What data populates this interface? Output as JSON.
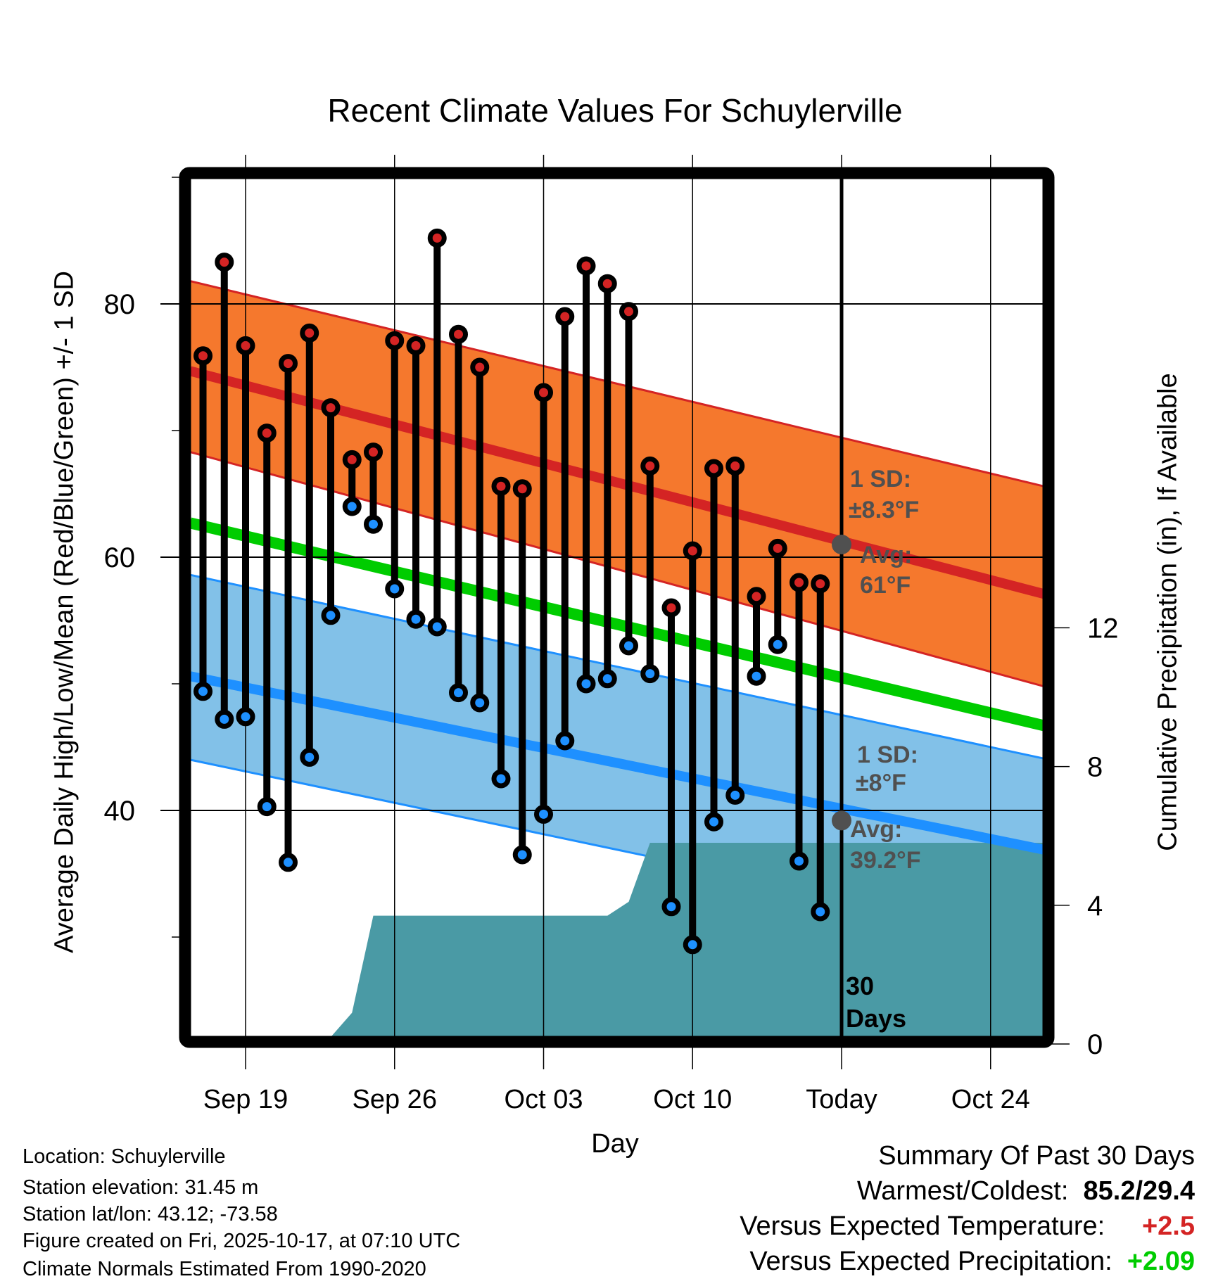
{
  "title": "Recent Climate Values For Schuylerville",
  "chart_data": {
    "type": "line",
    "title": "Recent Climate Values For Schuylerville",
    "xlabel": "Day",
    "ylabel": "Average Daily High/Low/Mean (Red/Blue/Green) +/- 1 SD",
    "y2label": "Cumulative Precipitation (in), If Available",
    "ylim": [
      21,
      90
    ],
    "y2lim": [
      0,
      24.8
    ],
    "yticks": [
      80,
      60,
      40
    ],
    "yticks_minor": [
      90,
      70,
      50,
      30
    ],
    "y2ticks": [
      12,
      8,
      4,
      0
    ],
    "xticks": [
      {
        "day": 2,
        "label": "Sep 19"
      },
      {
        "day": 9,
        "label": "Sep 26"
      },
      {
        "day": 16,
        "label": "Oct 03"
      },
      {
        "day": 23,
        "label": "Oct 10"
      },
      {
        "day": 30,
        "label": "Today"
      },
      {
        "day": 37,
        "label": "Oct 24"
      }
    ],
    "xlim": [
      -0.6,
      39.5
    ],
    "grid": true,
    "days": [
      "Sep 17",
      "Sep 18",
      "Sep 19",
      "Sep 20",
      "Sep 21",
      "Sep 22",
      "Sep 23",
      "Sep 24",
      "Sep 25",
      "Sep 26",
      "Sep 27",
      "Sep 28",
      "Sep 29",
      "Sep 30",
      "Oct 01",
      "Oct 02",
      "Oct 03",
      "Oct 04",
      "Oct 05",
      "Oct 06",
      "Oct 07",
      "Oct 08",
      "Oct 09",
      "Oct 10",
      "Oct 11",
      "Oct 12",
      "Oct 13",
      "Oct 14",
      "Oct 15",
      "Oct 16"
    ],
    "series": [
      {
        "name": "Daily High",
        "color": "#d42424",
        "values": [
          75.9,
          83.3,
          76.7,
          69.8,
          75.3,
          77.7,
          71.8,
          67.7,
          68.3,
          77.1,
          76.7,
          85.2,
          77.6,
          75.0,
          65.6,
          65.4,
          73.0,
          79.0,
          83.0,
          81.6,
          79.4,
          67.2,
          56.0,
          60.5,
          67.0,
          67.2,
          56.9,
          60.7,
          58.0,
          57.9
        ]
      },
      {
        "name": "Daily Low",
        "color": "#1e90ff",
        "values": [
          49.4,
          47.2,
          47.4,
          40.3,
          35.9,
          44.2,
          55.4,
          64.0,
          62.6,
          57.5,
          55.1,
          54.5,
          49.3,
          48.5,
          42.5,
          36.5,
          39.7,
          45.5,
          50.0,
          50.4,
          53.0,
          50.8,
          32.4,
          29.4,
          39.1,
          41.2,
          50.6,
          53.1,
          36.0,
          32.0
        ]
      }
    ],
    "normals": {
      "x_range": [
        -0.6,
        39.5
      ],
      "high_avg": [
        74.7,
        57.1
      ],
      "high_upper_sd": [
        81.8,
        65.6
      ],
      "high_lower_sd": [
        68.3,
        49.8
      ],
      "mean": [
        62.7,
        46.7
      ],
      "low_avg": [
        50.6,
        36.9
      ],
      "low_upper_sd": [
        58.6,
        44.1
      ],
      "low_lower_sd": [
        44.0,
        29.8
      ]
    },
    "precipitation": {
      "name": "Cumulative Precipitation",
      "color": "#4a9aa5",
      "points": [
        [
          5.8,
          0.0
        ],
        [
          6.0,
          0.2
        ],
        [
          7.0,
          0.9
        ],
        [
          8.0,
          3.7
        ],
        [
          19.0,
          3.7
        ],
        [
          20.0,
          4.1
        ],
        [
          21.0,
          5.8
        ],
        [
          39.5,
          5.8
        ]
      ]
    },
    "today_day": 30,
    "annotations": {
      "high_sd": "1 SD:",
      "high_sd_value": "±8.3°F",
      "high_avg": "Avg:",
      "high_avg_value": "61°F",
      "high_avg_today": 61,
      "low_sd": "1 SD:",
      "low_sd_value": "±8°F",
      "low_avg": "Avg:",
      "low_avg_value": "39.2°F",
      "low_avg_today": 39.2,
      "window": "30",
      "window_unit": "Days"
    },
    "colors": {
      "high_band": "#f5782d",
      "high_line": "#d42424",
      "mean_line": "#00cc00",
      "low_band": "#82c1e8",
      "low_line": "#1e90ff",
      "precip": "#4a9aa5",
      "annotation": "#505050"
    }
  },
  "info": {
    "location": "Location: Schuylerville",
    "elevation": "Station elevation: 31.45 m",
    "latlon": "Station lat/lon: 43.12; -73.58",
    "created": "Figure created on Fri, 2025-10-17, at 07:10 UTC",
    "normals": "Climate Normals Estimated From 1990-2020"
  },
  "summary": {
    "heading": "Summary Of Past 30 Days",
    "warmest_coldest_label": "Warmest/Coldest:",
    "warmest_coldest_value": "85.2/29.4",
    "temp_label": "Versus Expected Temperature:",
    "temp_value": "+2.5",
    "temp_color": "#d42424",
    "precip_label": "Versus Expected Precipitation:",
    "precip_value": "+2.09",
    "precip_color": "#00cc00"
  }
}
